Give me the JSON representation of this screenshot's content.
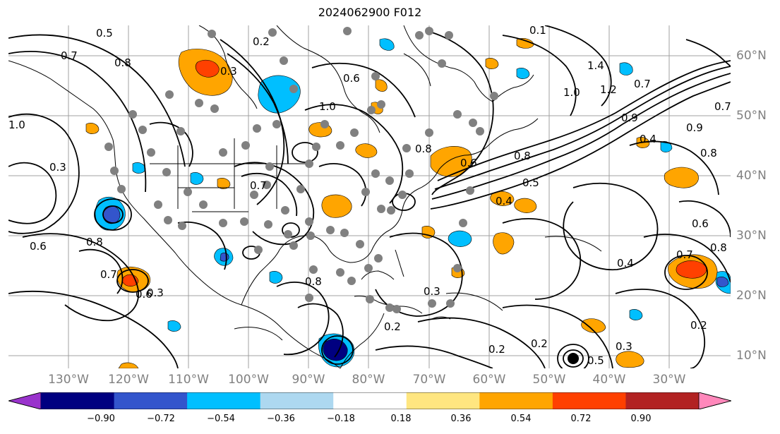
{
  "title": "2024062900 F012",
  "map": {
    "projection": "cylindrical",
    "lon_range": [
      -142,
      -22
    ],
    "lat_range": [
      7,
      65
    ],
    "grid_lines": true,
    "lon_labels": [
      "130°W",
      "120°W",
      "110°W",
      "100°W",
      "90°W",
      "80°W",
      "70°W",
      "60°W",
      "50°W",
      "40°W",
      "30°W"
    ],
    "lat_labels": [
      "60°N",
      "50°N",
      "40°N",
      "30°N",
      "20°N",
      "10°N"
    ],
    "contour_labels": [
      "0.5",
      "0.8",
      "0.7",
      "0.2",
      "0.6",
      "1.0",
      "0.3",
      "1.4",
      "1.2",
      "0.9",
      "0.4",
      "0.1"
    ],
    "colors": {
      "coastline": "#000000",
      "grid": "#808080",
      "station_dots": "#808080"
    }
  },
  "colorbar": {
    "ticks": [
      "−0.90",
      "−0.72",
      "−0.54",
      "−0.36",
      "−0.18",
      "0.18",
      "0.36",
      "0.54",
      "0.72",
      "0.90"
    ],
    "colors": [
      "#9933cc",
      "#000080",
      "#3355cc",
      "#00bfff",
      "#add8f0",
      "#ffffff",
      "#ffe680",
      "#ffa500",
      "#ff4000",
      "#b22222",
      "#ff88bb"
    ],
    "extend": "both"
  }
}
